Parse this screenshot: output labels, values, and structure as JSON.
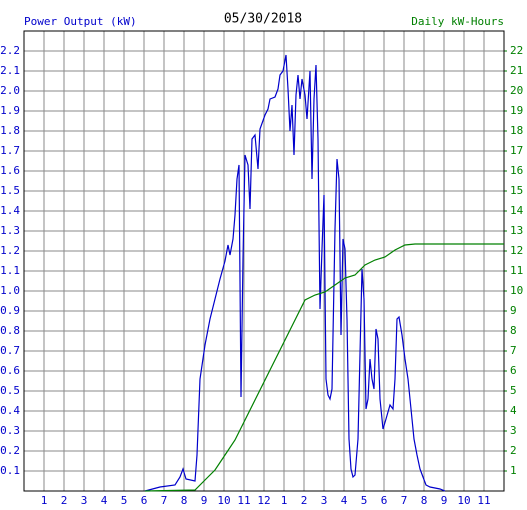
{
  "chart_data": {
    "type": "line",
    "title": "05/30/2018",
    "y_label": "Power Output (kW)",
    "y2_label": "Daily kW-Hours",
    "xlim": [
      0,
      24
    ],
    "xticks": [
      1,
      2,
      3,
      4,
      5,
      6,
      7,
      8,
      9,
      10,
      11,
      12,
      {
        "value": 13,
        "label": "1"
      },
      {
        "value": 14,
        "label": "2"
      },
      {
        "value": 15,
        "label": "3"
      },
      {
        "value": 16,
        "label": "4"
      },
      {
        "value": 17,
        "label": "5"
      },
      {
        "value": 18,
        "label": "6"
      },
      {
        "value": 19,
        "label": "7"
      },
      {
        "value": 20,
        "label": "8"
      },
      {
        "value": 21,
        "label": "9"
      },
      {
        "value": 22,
        "label": "10"
      },
      {
        "value": 23,
        "label": "11"
      }
    ],
    "ylim": [
      0,
      2.3
    ],
    "yticks": [
      0.1,
      0.2,
      0.3,
      0.4,
      0.5,
      0.6,
      0.7,
      0.8,
      0.9,
      {
        "value": 1,
        "label": "1.0"
      },
      1.1,
      1.2,
      1.3,
      1.4,
      1.5,
      1.6,
      1.7,
      1.8,
      1.9,
      {
        "value": 2,
        "label": "2.0"
      },
      2.1,
      2.2
    ],
    "y2lim": [
      0,
      23
    ],
    "y2ticks": [
      1,
      2,
      3,
      4,
      5,
      6,
      7,
      8,
      9,
      10,
      11,
      12,
      13,
      14,
      15,
      16,
      17,
      18,
      19,
      20,
      21,
      22
    ],
    "grid": true,
    "series": [
      {
        "name": "Power Output (kW)",
        "color": "#0000cc",
        "x": [
          6.05,
          6.8,
          7.55,
          7.8,
          7.95,
          8.1,
          8.55,
          8.65,
          8.8,
          9.05,
          9.3,
          9.55,
          9.8,
          10.05,
          10.2,
          10.3,
          10.45,
          10.55,
          10.65,
          10.75,
          10.85,
          10.95,
          11.05,
          11.2,
          11.3,
          11.4,
          11.55,
          11.7,
          11.8,
          12.05,
          12.2,
          12.3,
          12.55,
          12.7,
          12.8,
          12.95,
          13.1,
          13.2,
          13.3,
          13.4,
          13.5,
          13.6,
          13.7,
          13.8,
          13.9,
          14.05,
          14.15,
          14.3,
          14.4,
          14.5,
          14.6,
          14.7,
          14.8,
          14.9,
          15.0,
          15.1,
          15.2,
          15.3,
          15.4,
          15.55,
          15.65,
          15.75,
          15.85,
          15.95,
          16.05,
          16.15,
          16.25,
          16.35,
          16.45,
          16.55,
          16.7,
          16.9,
          17.0,
          17.1,
          17.2,
          17.3,
          17.4,
          17.5,
          17.6,
          17.7,
          17.8,
          17.95,
          18.1,
          18.3,
          18.45,
          18.55,
          18.65,
          18.75,
          18.9,
          19.05,
          19.2,
          19.35,
          19.5,
          19.65,
          19.8,
          19.95,
          20.1,
          20.3,
          20.8,
          21.05
        ],
        "values": [
          0,
          0.02,
          0.03,
          0.07,
          0.11,
          0.06,
          0.05,
          0.18,
          0.56,
          0.73,
          0.86,
          0.96,
          1.06,
          1.15,
          1.23,
          1.18,
          1.26,
          1.38,
          1.56,
          1.63,
          0.47,
          1.16,
          1.68,
          1.63,
          1.41,
          1.76,
          1.78,
          1.61,
          1.81,
          1.88,
          1.91,
          1.96,
          1.97,
          2.01,
          2.08,
          2.1,
          2.18,
          2.01,
          1.8,
          1.93,
          1.68,
          1.98,
          2.08,
          1.96,
          2.06,
          1.98,
          1.86,
          2.1,
          1.56,
          1.96,
          2.13,
          1.76,
          0.91,
          1.21,
          1.48,
          0.56,
          0.48,
          0.46,
          0.51,
          1.31,
          1.66,
          1.56,
          0.78,
          1.26,
          1.21,
          0.86,
          0.26,
          0.11,
          0.07,
          0.08,
          0.26,
          1.11,
          0.96,
          0.41,
          0.46,
          0.66,
          0.56,
          0.51,
          0.81,
          0.76,
          0.46,
          0.31,
          0.36,
          0.43,
          0.41,
          0.56,
          0.86,
          0.87,
          0.78,
          0.66,
          0.56,
          0.41,
          0.26,
          0.18,
          0.11,
          0.07,
          0.03,
          0.02,
          0.01,
          0
        ]
      },
      {
        "name": "Daily kW-Hours",
        "color": "#008000",
        "axis": "y2",
        "x": [
          6.05,
          8.55,
          9.05,
          9.55,
          10.05,
          10.55,
          11.05,
          11.55,
          12.05,
          12.55,
          13.05,
          13.55,
          14.05,
          14.55,
          15.05,
          15.55,
          16.05,
          16.55,
          17.05,
          17.55,
          18.05,
          18.55,
          19.05,
          19.55,
          24
        ],
        "values": [
          0,
          0.05,
          0.55,
          1.05,
          1.8,
          2.55,
          3.55,
          4.55,
          5.55,
          6.55,
          7.55,
          8.55,
          9.55,
          9.8,
          9.95,
          10.3,
          10.65,
          10.8,
          11.3,
          11.55,
          11.7,
          12.05,
          12.3,
          12.35,
          12.35
        ]
      }
    ]
  }
}
